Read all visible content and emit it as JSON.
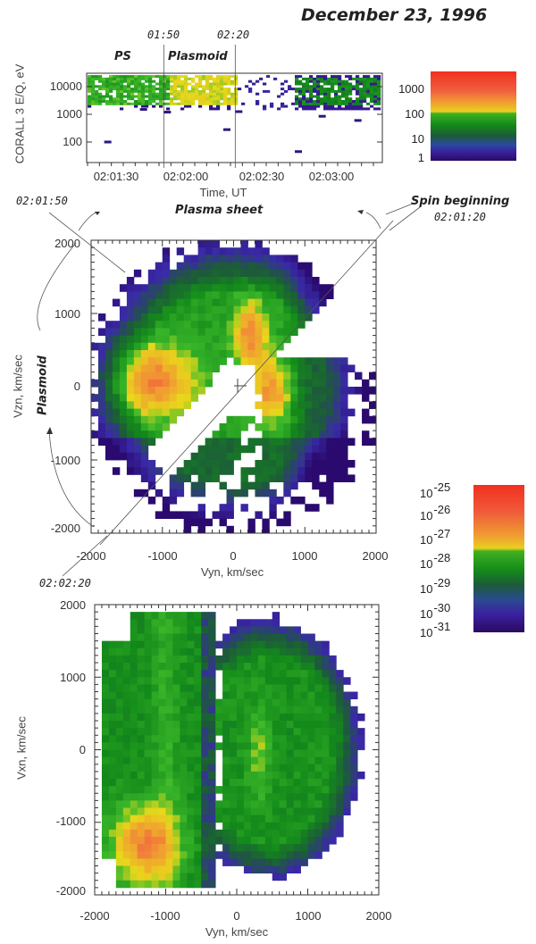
{
  "title": "December 23, 1996",
  "annotations": {
    "t1": "01:50",
    "t2": "02:20",
    "ps": "PS",
    "plasmoid_top": "Plasmoid",
    "left_time": "02:01:50",
    "plasma_sheet": "Plasma sheet",
    "spin_beginning": "Spin beginning",
    "spin_time": "02:01:20",
    "plasmoid_side": "Plasmoid",
    "bottom_time": "02:02:20"
  },
  "colors": {
    "axis": "#333333",
    "guide": "#555555"
  },
  "chart_data": [
    {
      "type": "heatmap",
      "name": "energy-time spectrogram",
      "ylabel": "CORALL 3 E/Q, eV",
      "xlabel": "Time, UT",
      "yscale": "log",
      "ylim": [
        17,
        30000
      ],
      "xlim_seconds_after_0200": [
        77.6,
        201.8
      ],
      "yticks": [
        "10000",
        "1000",
        "100"
      ],
      "xticks": [
        "02:01:30",
        "02:02:00",
        "02:02:30",
        "02:03:00"
      ],
      "markers": [
        "02:01:50",
        "02:02:20"
      ],
      "colorbar": {
        "scale": "log",
        "range": [
          1,
          5000
        ],
        "ticks": [
          "1000",
          "100",
          "10",
          "1"
        ]
      }
    },
    {
      "type": "heatmap",
      "name": "Vyn-Vzn velocity distribution",
      "xlabel": "Vyn, km/sec",
      "ylabel": "Vzn, km/sec",
      "xlim": [
        -2000,
        2000
      ],
      "ylim": [
        -2000,
        2000
      ],
      "xticks": [
        "-2000",
        "-1000",
        "0",
        "1000",
        "2000"
      ],
      "yticks": [
        "2000",
        "1000",
        "0",
        "-1000",
        "-2000"
      ]
    },
    {
      "type": "heatmap",
      "name": "Vyn-Vxn velocity distribution",
      "xlabel": "Vyn, km/sec",
      "ylabel": "Vxn, km/sec",
      "xlim": [
        -2000,
        2000
      ],
      "ylim": [
        -2000,
        2000
      ],
      "xticks": [
        "-2000",
        "-1000",
        "0",
        "1000",
        "2000"
      ],
      "yticks": [
        "2000",
        "1000",
        "0",
        "-1000",
        "-2000"
      ]
    },
    {
      "type": "colorbar",
      "name": "phase space density",
      "scale": "log",
      "base": "10",
      "exponents": [
        "-25",
        "-26",
        "-27",
        "-28",
        "-29",
        "-30",
        "-31"
      ]
    }
  ]
}
